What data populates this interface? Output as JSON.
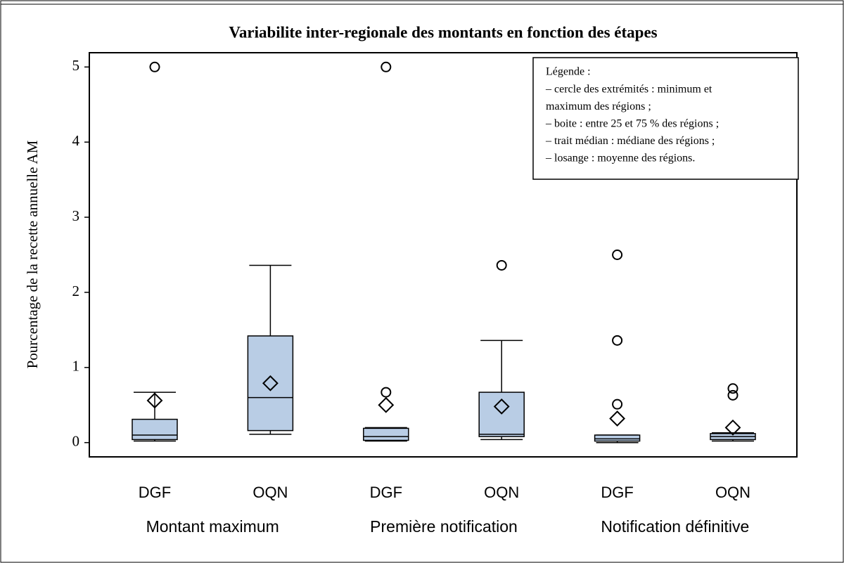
{
  "chart_data": {
    "type": "box",
    "title": "Variabilite inter-regionale des montants en fonction des étapes",
    "y_label": "Pourcentage de la recette annuelle AM",
    "categories": [
      "DGF",
      "OQN",
      "DGF",
      "OQN",
      "DGF",
      "OQN"
    ],
    "groups": [
      "Montant maximum",
      "Première notification",
      "Notification définitive"
    ],
    "color": "#b9cde5",
    "boxes": [
      {
        "min": 0.02,
        "q1": 0.04,
        "median": 0.1,
        "q3": 0.31,
        "max": 0.67,
        "mean": 0.56,
        "outliers": [
          5.0
        ]
      },
      {
        "min": 0.11,
        "q1": 0.16,
        "median": 0.6,
        "q3": 1.42,
        "max": 2.36,
        "mean": 0.79,
        "outliers": []
      },
      {
        "min": 0.02,
        "q1": 0.03,
        "median": 0.08,
        "q3": 0.19,
        "max": 0.2,
        "mean": 0.5,
        "outliers": [
          0.67,
          5.0
        ]
      },
      {
        "min": 0.04,
        "q1": 0.08,
        "median": 0.11,
        "q3": 0.67,
        "max": 1.36,
        "mean": 0.48,
        "outliers": [
          2.36
        ]
      },
      {
        "min": 0.0,
        "q1": 0.02,
        "median": 0.05,
        "q3": 0.1,
        "max": 0.1,
        "mean": 0.32,
        "outliers": [
          0.51,
          1.36,
          2.5
        ]
      },
      {
        "min": 0.02,
        "q1": 0.04,
        "median": 0.08,
        "q3": 0.12,
        "max": 0.13,
        "mean": 0.2,
        "outliers": [
          0.63,
          0.72
        ]
      }
    ],
    "ylim": [
      -0.19,
      5.19
    ],
    "yticks": [
      0,
      1,
      2,
      3,
      4,
      5
    ],
    "grid": false,
    "legend_text": [
      "Légende :",
      "– cercle des extrémités : minimum  et",
      "maximum des régions ;",
      "– boite : entre 25 et 75 % des régions ;",
      "– trait médian : médiane des régions ;",
      "– losange : moyenne des régions."
    ]
  }
}
